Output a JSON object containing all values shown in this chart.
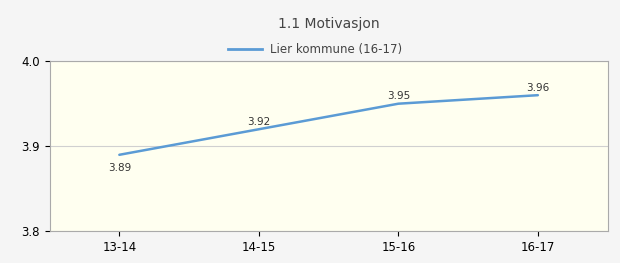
{
  "title": "1.1 Motivasjon",
  "categories": [
    "13-14",
    "14-15",
    "15-16",
    "16-17"
  ],
  "series": [
    {
      "label": "Lier kommune (16-17)",
      "values": [
        3.89,
        3.92,
        3.95,
        3.96
      ],
      "color": "#5b9bd5",
      "linewidth": 1.8
    }
  ],
  "ylim": [
    3.8,
    4.0
  ],
  "yticks": [
    3.8,
    3.9,
    4.0
  ],
  "plot_bg_color": "#fffff0",
  "outer_bg_color": "#f5f5f5",
  "header_bg_color": "#ffffff",
  "grid_color": "#d0d0d0",
  "border_color": "#aaaaaa",
  "data_label_fontsize": 7.5,
  "title_fontsize": 10,
  "legend_fontsize": 8.5,
  "tick_fontsize": 8.5
}
